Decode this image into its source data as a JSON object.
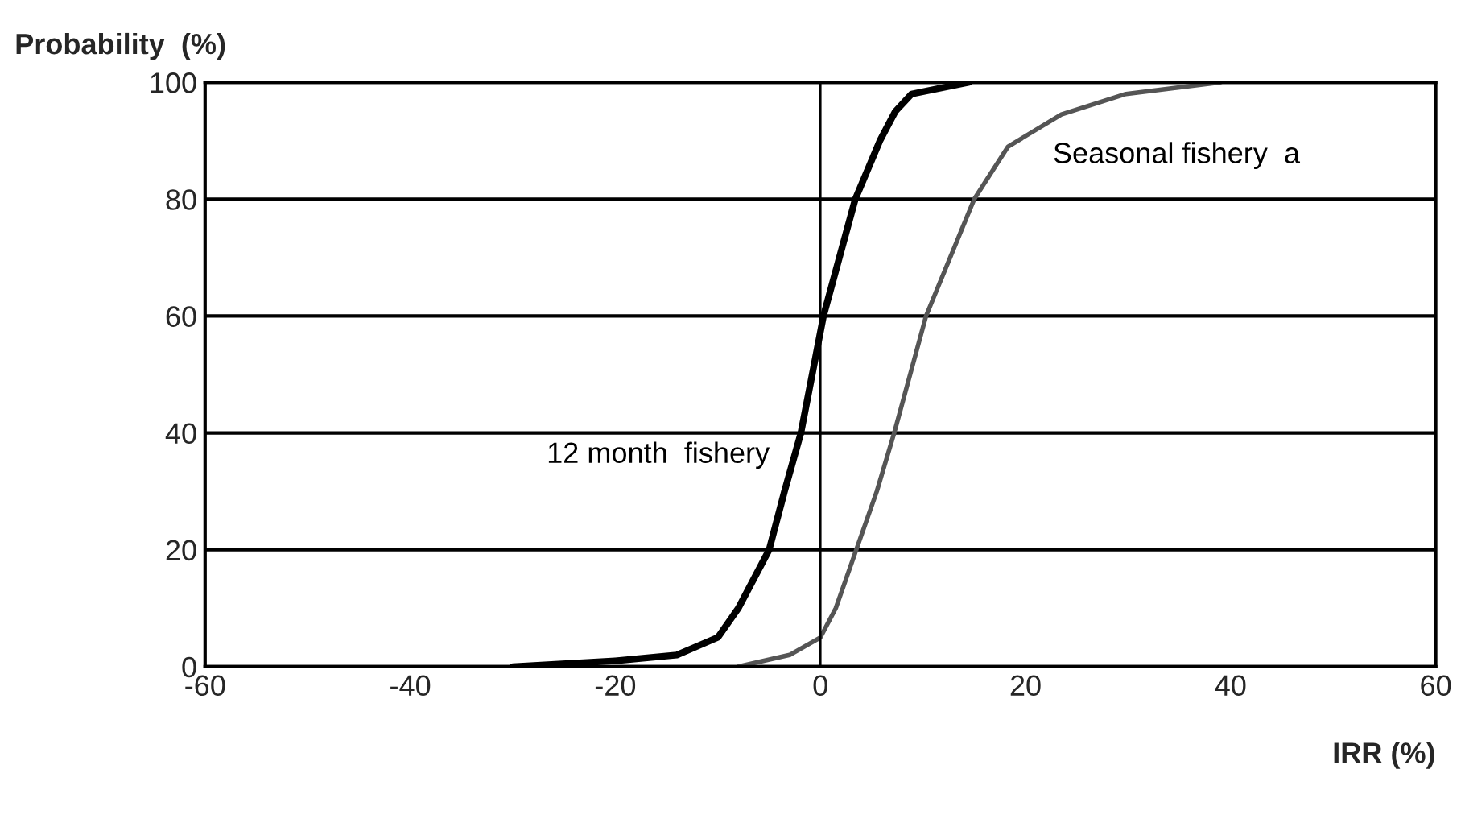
{
  "chart_data": {
    "type": "line",
    "xlabel": "IRR (%)",
    "ylabel": "Probability  (%)",
    "xlim": [
      -60,
      60
    ],
    "xticks": [
      {
        "value": -60,
        "label": "-60"
      },
      {
        "value": -40,
        "label": "-40"
      },
      {
        "value": -20,
        "label": "-20"
      },
      0,
      20,
      40,
      60
    ],
    "ylim": [
      0,
      100
    ],
    "yticks": [
      0,
      20,
      40,
      60,
      80,
      100
    ],
    "grid": "y",
    "marker": "none",
    "line_style": "solid",
    "ref_lines": [
      {
        "axis": "x",
        "value": 0,
        "color": "#000000"
      }
    ],
    "series": [
      {
        "name": "12 month  fishery",
        "color": "#000000",
        "x": [
          -30,
          -20,
          -14,
          -10,
          -8,
          -5,
          -3.5,
          -1.9,
          0.3,
          3.4,
          5.8,
          7.3,
          8.9,
          14.5
        ],
        "values": [
          0,
          1,
          2,
          5,
          10,
          20,
          30,
          40,
          60,
          80,
          90,
          95,
          98,
          100
        ]
      },
      {
        "name": "Seasonal fishery  a",
        "color": "#555555",
        "x": [
          -8,
          -3,
          0,
          1.5,
          3.5,
          5.5,
          7.2,
          10.3,
          15,
          18.3,
          23.5,
          29.8,
          39
        ],
        "values": [
          0,
          2,
          5,
          10,
          20,
          30,
          40,
          60,
          80,
          89,
          94.5,
          98,
          100
        ]
      }
    ]
  }
}
